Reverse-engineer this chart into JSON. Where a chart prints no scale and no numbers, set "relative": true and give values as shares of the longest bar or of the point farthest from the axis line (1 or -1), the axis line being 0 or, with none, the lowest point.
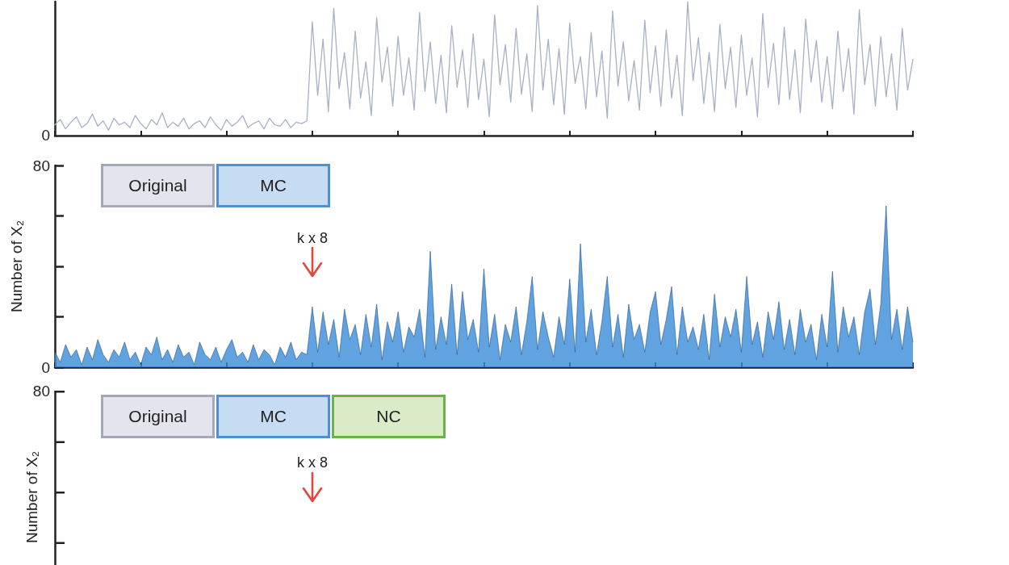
{
  "chart_data": [
    {
      "type": "line",
      "relative": true,
      "color": "#a9b0c6",
      "categories": [
        null,
        null,
        null,
        null,
        null,
        null,
        null,
        null,
        null,
        null,
        null,
        null,
        null,
        null,
        null,
        null,
        null,
        null,
        null,
        null,
        null,
        null,
        null,
        null,
        null,
        null,
        null,
        null,
        null,
        null,
        null,
        null,
        null,
        null,
        null,
        null,
        null,
        null,
        null,
        null,
        null,
        null,
        null,
        null,
        null,
        null,
        null,
        null,
        null,
        null,
        null,
        null,
        null,
        null,
        null,
        null,
        null,
        null,
        null,
        null,
        null,
        null,
        null,
        null,
        null,
        null,
        null,
        null,
        null,
        null,
        null,
        null,
        null,
        null,
        null,
        null,
        null,
        null,
        null,
        null,
        null,
        null,
        null,
        null,
        null,
        null,
        null,
        null,
        null,
        null,
        null,
        null,
        null,
        null,
        null,
        null,
        null,
        null,
        null,
        null,
        null,
        null,
        null,
        null,
        null,
        null,
        null,
        null,
        null,
        null,
        null,
        null,
        null,
        null,
        null,
        null,
        null,
        null,
        null,
        null,
        null,
        null,
        null,
        null,
        null,
        null,
        null,
        null,
        null,
        null,
        null,
        null,
        null,
        null,
        null,
        null,
        null,
        null,
        null,
        null,
        null,
        null,
        null,
        null,
        null,
        null,
        null,
        null,
        null,
        null,
        null,
        null,
        null,
        null,
        null,
        null,
        null,
        null,
        null,
        null,
        null
      ],
      "values": [
        0.08,
        0.12,
        0.05,
        0.1,
        0.14,
        0.06,
        0.09,
        0.16,
        0.07,
        0.11,
        0.04,
        0.13,
        0.08,
        0.1,
        0.06,
        0.15,
        0.09,
        0.05,
        0.12,
        0.08,
        0.17,
        0.06,
        0.1,
        0.07,
        0.13,
        0.05,
        0.09,
        0.11,
        0.06,
        0.14,
        0.08,
        0.04,
        0.12,
        0.07,
        0.1,
        0.15,
        0.06,
        0.09,
        0.11,
        0.05,
        0.13,
        0.08,
        0.07,
        0.12,
        0.06,
        0.1,
        0.09,
        0.11,
        0.85,
        0.3,
        0.72,
        0.18,
        0.95,
        0.35,
        0.62,
        0.2,
        0.78,
        0.28,
        0.55,
        0.15,
        0.88,
        0.4,
        0.66,
        0.22,
        0.74,
        0.3,
        0.58,
        0.19,
        0.92,
        0.33,
        0.7,
        0.24,
        0.6,
        0.17,
        0.82,
        0.36,
        0.64,
        0.21,
        0.76,
        0.27,
        0.57,
        0.14,
        0.9,
        0.38,
        0.68,
        0.25,
        0.8,
        0.31,
        0.61,
        0.18,
        0.97,
        0.34,
        0.72,
        0.23,
        0.65,
        0.16,
        0.84,
        0.39,
        0.59,
        0.2,
        0.77,
        0.29,
        0.63,
        0.13,
        0.93,
        0.37,
        0.7,
        0.26,
        0.56,
        0.19,
        0.86,
        0.32,
        0.67,
        0.22,
        0.79,
        0.28,
        0.6,
        0.15,
        1.0,
        0.41,
        0.73,
        0.24,
        0.62,
        0.18,
        0.83,
        0.35,
        0.66,
        0.21,
        0.75,
        0.3,
        0.58,
        0.14,
        0.91,
        0.36,
        0.69,
        0.23,
        0.81,
        0.27,
        0.64,
        0.17,
        0.87,
        0.4,
        0.71,
        0.25,
        0.59,
        0.2,
        0.78,
        0.33,
        0.65,
        0.16,
        0.94,
        0.38,
        0.68,
        0.22,
        0.74,
        0.29,
        0.61,
        0.19,
        0.8,
        0.34,
        0.57
      ],
      "annotations": [
        "0"
      ]
    },
    {
      "type": "area",
      "color": "#3a8bd9",
      "ylabel": "Number of X₂",
      "ylim": [
        0,
        80
      ],
      "yticks": [
        0,
        {
          "value": 20,
          "label": null
        },
        {
          "value": 40,
          "label": null
        },
        {
          "value": 60,
          "label": null
        },
        80
      ],
      "categories": [
        null,
        null,
        null,
        null,
        null,
        null,
        null,
        null,
        null,
        null,
        null,
        null,
        null,
        null,
        null,
        null,
        null,
        null,
        null,
        null,
        null,
        null,
        null,
        null,
        null,
        null,
        null,
        null,
        null,
        null,
        null,
        null,
        null,
        null,
        null,
        null,
        null,
        null,
        null,
        null,
        null,
        null,
        null,
        null,
        null,
        null,
        null,
        null,
        null,
        null,
        null,
        null,
        null,
        null,
        null,
        null,
        null,
        null,
        null,
        null,
        null,
        null,
        null,
        null,
        null,
        null,
        null,
        null,
        null,
        null,
        null,
        null,
        null,
        null,
        null,
        null,
        null,
        null,
        null,
        null,
        null,
        null,
        null,
        null,
        null,
        null,
        null,
        null,
        null,
        null,
        null,
        null,
        null,
        null,
        null,
        null,
        null,
        null,
        null,
        null,
        null,
        null,
        null,
        null,
        null,
        null,
        null,
        null,
        null,
        null,
        null,
        null,
        null,
        null,
        null,
        null,
        null,
        null,
        null,
        null,
        null,
        null,
        null,
        null,
        null,
        null,
        null,
        null,
        null,
        null,
        null,
        null,
        null,
        null,
        null,
        null,
        null,
        null,
        null,
        null,
        null,
        null,
        null,
        null,
        null,
        null,
        null,
        null,
        null,
        null,
        null,
        null,
        null,
        null,
        null,
        null,
        null,
        null,
        null,
        null,
        null
      ],
      "values": [
        6,
        2,
        9,
        4,
        7,
        1,
        8,
        3,
        11,
        5,
        2,
        7,
        4,
        10,
        3,
        6,
        1,
        8,
        5,
        12,
        3,
        7,
        2,
        9,
        4,
        6,
        1,
        10,
        5,
        3,
        8,
        2,
        7,
        11,
        4,
        6,
        2,
        9,
        3,
        7,
        5,
        1,
        8,
        4,
        10,
        3,
        6,
        5,
        24,
        6,
        22,
        9,
        19,
        4,
        23,
        11,
        17,
        5,
        21,
        8,
        25,
        3,
        18,
        10,
        22,
        6,
        16,
        12,
        23,
        4,
        46,
        7,
        20,
        9,
        33,
        5,
        30,
        11,
        19,
        6,
        39,
        8,
        21,
        3,
        17,
        10,
        24,
        5,
        18,
        36,
        7,
        22,
        12,
        4,
        20,
        9,
        35,
        6,
        49,
        10,
        23,
        5,
        18,
        36,
        8,
        21,
        4,
        25,
        11,
        17,
        6,
        22,
        30,
        9,
        19,
        32,
        5,
        24,
        10,
        16,
        7,
        21,
        3,
        29,
        8,
        20,
        12,
        23,
        6,
        36,
        9,
        18,
        4,
        22,
        11,
        26,
        7,
        19,
        5,
        23,
        10,
        17,
        3,
        21,
        8,
        38,
        6,
        24,
        12,
        20,
        5,
        22,
        31,
        9,
        25,
        64,
        11,
        23,
        7,
        24,
        10
      ],
      "annotations": [
        "Original",
        "MC",
        "k x 8"
      ]
    },
    {
      "type": "other",
      "ylabel": "Number of X₂",
      "annotations": [
        "80",
        "Original",
        "MC",
        "NC",
        "k x 8"
      ]
    }
  ]
}
